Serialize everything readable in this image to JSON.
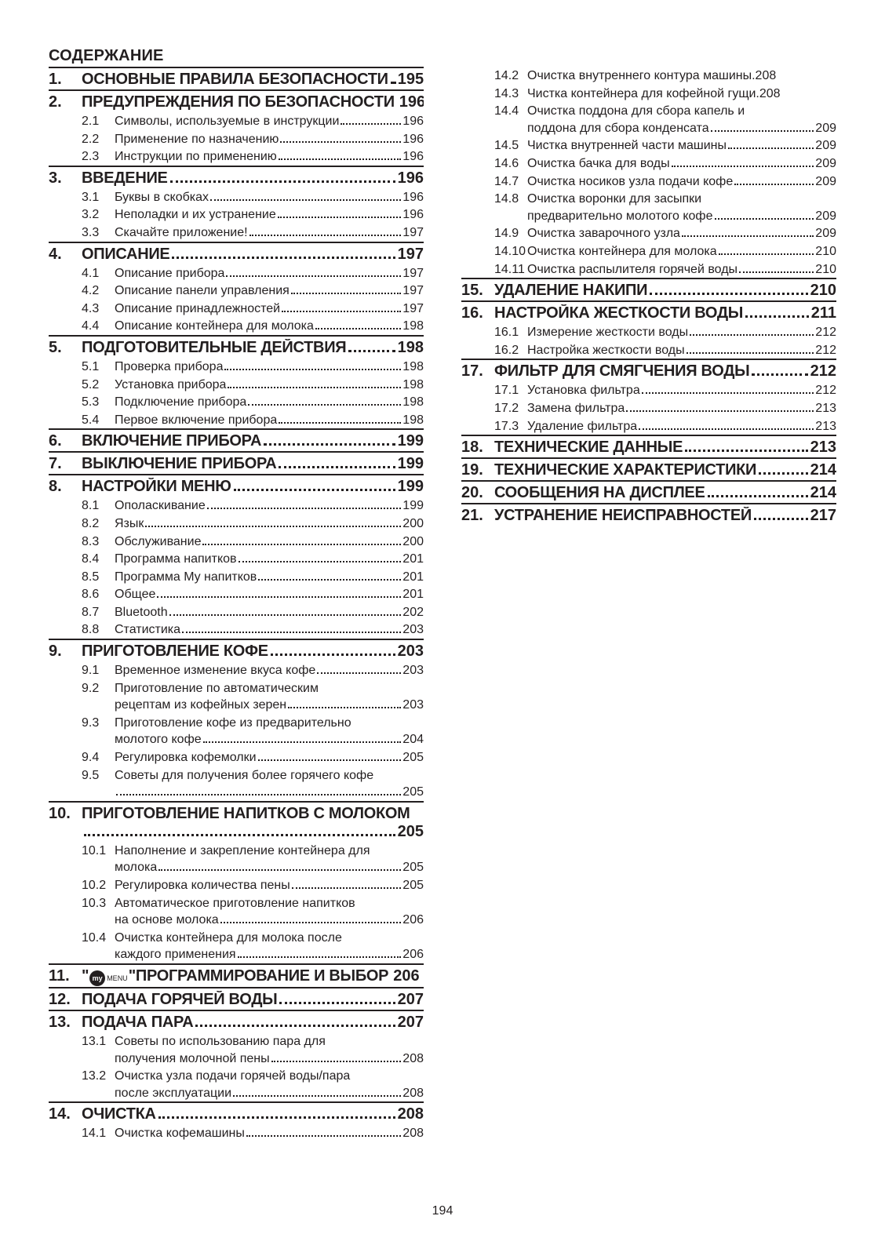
{
  "title": "СОДЕРЖАНИЕ",
  "pageNumber": "194",
  "iconText": "my",
  "iconLabel": "MENU",
  "sections": [
    {
      "num": "1.",
      "title": "ОСНОВНЫЕ ПРАВИЛА БЕЗОПАСНОСТИ",
      "page": "195",
      "dots": true,
      "wrap": false,
      "subs": []
    },
    {
      "num": "2.",
      "title": "ПРЕДУПРЕЖДЕНИЯ ПО БЕЗОПАСНОСТИ",
      "page": "196",
      "dots": false,
      "wrap": false,
      "pad": true,
      "subs": [
        {
          "num": "2.1",
          "lines": [
            {
              "text": "Символы, используемые в инструкции",
              "page": "196",
              "dots": true
            }
          ]
        },
        {
          "num": "2.2",
          "lines": [
            {
              "text": "Применение по назначению",
              "page": "196",
              "dots": true
            }
          ]
        },
        {
          "num": "2.3",
          "lines": [
            {
              "text": "Инструкции по применению",
              "page": "196",
              "dots": true
            }
          ]
        }
      ]
    },
    {
      "num": "3.",
      "title": "ВВЕДЕНИЕ",
      "page": "196",
      "dots": true,
      "wrap": false,
      "subs": [
        {
          "num": "3.1",
          "lines": [
            {
              "text": "Буквы в скобках",
              "page": "196",
              "dots": true
            }
          ]
        },
        {
          "num": "3.2",
          "lines": [
            {
              "text": "Неполадки и их устранение",
              "page": "196",
              "dots": true
            }
          ]
        },
        {
          "num": "3.3",
          "lines": [
            {
              "text": "Скачайте приложение!",
              "page": "197",
              "dots": true
            }
          ]
        }
      ]
    },
    {
      "num": "4.",
      "title": "ОПИСАНИЕ",
      "page": "197",
      "dots": true,
      "wrap": false,
      "subs": [
        {
          "num": "4.1",
          "lines": [
            {
              "text": "Описание прибора",
              "page": "197",
              "dots": true
            }
          ]
        },
        {
          "num": "4.2",
          "lines": [
            {
              "text": "Описание панели управления",
              "page": "197",
              "dots": true
            }
          ]
        },
        {
          "num": "4.3",
          "lines": [
            {
              "text": "Описание принадлежностей",
              "page": "197",
              "dots": true
            }
          ]
        },
        {
          "num": "4.4",
          "lines": [
            {
              "text": "Описание контейнера для молока",
              "page": "198",
              "dots": true
            }
          ]
        }
      ]
    },
    {
      "num": "5.",
      "title": "ПОДГОТОВИТЕЛЬНЫЕ ДЕЙСТВИЯ",
      "page": "198",
      "dots": true,
      "wrap": false,
      "subs": [
        {
          "num": "5.1",
          "lines": [
            {
              "text": "Проверка прибора",
              "page": "198",
              "dots": true
            }
          ]
        },
        {
          "num": "5.2",
          "lines": [
            {
              "text": "Установка прибора",
              "page": "198",
              "dots": true
            }
          ]
        },
        {
          "num": "5.3",
          "lines": [
            {
              "text": "Подключение прибора",
              "page": "198",
              "dots": true
            }
          ]
        },
        {
          "num": "5.4",
          "lines": [
            {
              "text": "Первое включение прибора",
              "page": "198",
              "dots": true
            }
          ]
        }
      ]
    },
    {
      "num": "6.",
      "title": "ВКЛЮЧЕНИЕ ПРИБОРА",
      "page": "199",
      "dots": true,
      "wrap": false,
      "subs": []
    },
    {
      "num": "7.",
      "title": "ВЫКЛЮЧЕНИЕ ПРИБОРА",
      "page": "199",
      "dots": true,
      "wrap": false,
      "subs": []
    },
    {
      "num": "8.",
      "title": "НАСТРОЙКИ МЕНЮ",
      "page": "199",
      "dots": true,
      "wrap": false,
      "subs": [
        {
          "num": "8.1",
          "lines": [
            {
              "text": "Ополаскивание",
              "page": "199",
              "dots": true
            }
          ]
        },
        {
          "num": "8.2",
          "lines": [
            {
              "text": "Язык",
              "page": "200",
              "dots": true
            }
          ]
        },
        {
          "num": "8.3",
          "lines": [
            {
              "text": "Обслуживание",
              "page": "200",
              "dots": true
            }
          ]
        },
        {
          "num": "8.4",
          "lines": [
            {
              "text": "Программа напитков",
              "page": "201",
              "dots": true
            }
          ]
        },
        {
          "num": "8.5",
          "lines": [
            {
              "text": "Программа My напитков",
              "page": "201",
              "dots": true
            }
          ]
        },
        {
          "num": "8.6",
          "lines": [
            {
              "text": "Общее",
              "page": "201",
              "dots": true
            }
          ]
        },
        {
          "num": "8.7",
          "lines": [
            {
              "text": "Bluetooth",
              "page": "202",
              "dots": true
            }
          ]
        },
        {
          "num": "8.8",
          "lines": [
            {
              "text": "Статистика",
              "page": "203",
              "dots": true
            }
          ]
        }
      ]
    },
    {
      "num": "9.",
      "title": "ПРИГОТОВЛЕНИЕ КОФЕ",
      "page": "203",
      "dots": true,
      "wrap": false,
      "subs": [
        {
          "num": "9.1",
          "lines": [
            {
              "text": "Временное изменение вкуса кофе",
              "page": "203",
              "dots": true
            }
          ]
        },
        {
          "num": "9.2",
          "lines": [
            {
              "text": "Приготовление по автоматическим"
            },
            {
              "text": "рецептам из кофейных зерен",
              "page": "203",
              "dots": true
            }
          ]
        },
        {
          "num": "9.3",
          "lines": [
            {
              "text": "Приготовление кофе из предварительно"
            },
            {
              "text": "молотого кофе",
              "page": "204",
              "dots": true
            }
          ]
        },
        {
          "num": "9.4",
          "lines": [
            {
              "text": "Регулировка кофемолки",
              "page": "205",
              "dots": true
            }
          ]
        },
        {
          "num": "9.5",
          "lines": [
            {
              "text": "Советы для получения более горячего кофе"
            },
            {
              "text": "",
              "page": "205",
              "dots": true
            }
          ]
        }
      ]
    },
    {
      "num": "10.",
      "title": "ПРИГОТОВЛЕНИЕ НАПИТКОВ С МОЛОКОМ",
      "page": "205",
      "dots": true,
      "wrap": true,
      "subs": [
        {
          "num": "10.1",
          "lines": [
            {
              "text": "Наполнение и закрепление контейнера для"
            },
            {
              "text": "молока",
              "page": "205",
              "dots": true
            }
          ]
        },
        {
          "num": "10.2",
          "lines": [
            {
              "text": "Регулировка количества пены",
              "page": "205",
              "dots": true
            }
          ]
        },
        {
          "num": "10.3",
          "lines": [
            {
              "text": "Автоматическое приготовление напитков"
            },
            {
              "text": "на основе молока",
              "page": "206",
              "dots": true
            }
          ]
        },
        {
          "num": "10.4",
          "lines": [
            {
              "text": "Очистка контейнера для молока после"
            },
            {
              "text": "каждого применения",
              "page": "206",
              "dots": true
            }
          ]
        }
      ]
    },
    {
      "num": "11.",
      "title": "ПРОГРАММИРОВАНИЕ И ВЫБОР",
      "page": "206",
      "dots": false,
      "wrap": false,
      "icon": true,
      "pad": true,
      "subs": []
    },
    {
      "num": "12.",
      "title": "ПОДАЧА ГОРЯЧЕЙ ВОДЫ",
      "page": "207",
      "dots": true,
      "wrap": false,
      "subs": []
    },
    {
      "num": "13.",
      "title": "ПОДАЧА ПАРА",
      "page": "207",
      "dots": true,
      "wrap": false,
      "subs": [
        {
          "num": "13.1",
          "lines": [
            {
              "text": "Советы по использованию пара для"
            },
            {
              "text": "получения молочной пены",
              "page": "208",
              "dots": true
            }
          ]
        },
        {
          "num": "13.2",
          "lines": [
            {
              "text": "Очистка узла подачи горячей воды/пара"
            },
            {
              "text": "после эксплуатации",
              "page": "208",
              "dots": true
            }
          ]
        }
      ]
    },
    {
      "num": "14.",
      "title": "ОЧИСТКА",
      "page": "208",
      "dots": true,
      "wrap": false,
      "subs": [
        {
          "num": "14.1",
          "lines": [
            {
              "text": "Очистка кофемашины",
              "page": "208",
              "dots": true
            }
          ]
        },
        {
          "num": "14.2",
          "lines": [
            {
              "text": "Очистка внутреннего контура машины",
              "page": "208",
              "dots": false
            }
          ]
        },
        {
          "num": "14.3",
          "lines": [
            {
              "text": "Чистка контейнера для кофейной гущи",
              "page": "208",
              "dots": false
            }
          ]
        },
        {
          "num": "14.4",
          "lines": [
            {
              "text": "Очистка поддона для сбора капель и"
            },
            {
              "text": "поддона для сбора конденсата",
              "page": "209",
              "dots": true
            }
          ]
        },
        {
          "num": "14.5",
          "lines": [
            {
              "text": "Чистка внутренней части машины",
              "page": "209",
              "dots": true
            }
          ]
        },
        {
          "num": "14.6",
          "lines": [
            {
              "text": "Очистка бачка для воды",
              "page": "209",
              "dots": true
            }
          ]
        },
        {
          "num": "14.7",
          "lines": [
            {
              "text": "Очистка носиков узла подачи кофе",
              "page": "209",
              "dots": true
            }
          ]
        },
        {
          "num": "14.8",
          "lines": [
            {
              "text": "Очистка воронки для засыпки"
            },
            {
              "text": "предварительно молотого кофе",
              "page": "209",
              "dots": true
            }
          ]
        },
        {
          "num": "14.9",
          "lines": [
            {
              "text": "Очистка заварочного узла",
              "page": "209",
              "dots": true
            }
          ]
        },
        {
          "num": "14.10",
          "lines": [
            {
              "text": "Очистка контейнера для молока",
              "page": "210",
              "dots": true
            }
          ]
        },
        {
          "num": "14.11",
          "lines": [
            {
              "text": "Очистка распылителя горячей воды",
              "page": "210",
              "dots": true
            }
          ]
        }
      ]
    },
    {
      "num": "15.",
      "title": "УДАЛЕНИЕ НАКИПИ",
      "page": "210",
      "dots": true,
      "wrap": false,
      "subs": []
    },
    {
      "num": "16.",
      "title": "НАСТРОЙКА ЖЕСТКОСТИ ВОДЫ",
      "page": "211",
      "dots": true,
      "wrap": false,
      "subs": [
        {
          "num": "16.1",
          "lines": [
            {
              "text": "Измерение жесткости воды",
              "page": "212",
              "dots": true
            }
          ]
        },
        {
          "num": "16.2",
          "lines": [
            {
              "text": "Настройка жесткости воды",
              "page": "212",
              "dots": true
            }
          ]
        }
      ]
    },
    {
      "num": "17.",
      "title": "ФИЛЬТР ДЛЯ СМЯГЧЕНИЯ ВОДЫ",
      "page": "212",
      "dots": true,
      "wrap": false,
      "subs": [
        {
          "num": "17.1",
          "lines": [
            {
              "text": "Установка фильтра",
              "page": "212",
              "dots": true
            }
          ]
        },
        {
          "num": "17.2",
          "lines": [
            {
              "text": "Замена фильтра",
              "page": "213",
              "dots": true
            }
          ]
        },
        {
          "num": "17.3",
          "lines": [
            {
              "text": "Удаление фильтра",
              "page": "213",
              "dots": true
            }
          ]
        }
      ]
    },
    {
      "num": "18.",
      "title": "ТЕХНИЧЕСКИЕ ДАННЫЕ",
      "page": "213",
      "dots": true,
      "wrap": false,
      "subs": []
    },
    {
      "num": "19.",
      "title": "ТЕХНИЧЕСКИЕ ХАРАКТЕРИСТИКИ",
      "page": "214",
      "dots": true,
      "wrap": false,
      "subs": []
    },
    {
      "num": "20.",
      "title": "СООБЩЕНИЯ НА ДИСПЛЕЕ",
      "page": "214",
      "dots": true,
      "wrap": false,
      "subs": []
    },
    {
      "num": "21.",
      "title": "УСТРАНЕНИЕ НЕИСПРАВНОСТЕЙ",
      "page": "217",
      "dots": true,
      "wrap": false,
      "subs": []
    }
  ]
}
